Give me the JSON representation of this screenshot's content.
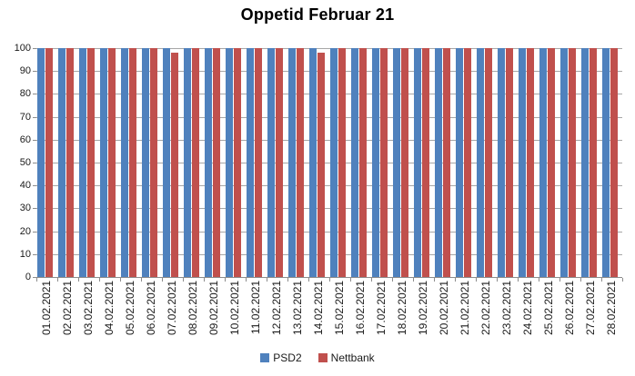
{
  "chart_data": {
    "type": "bar",
    "title": "Oppetid Februar 21",
    "categories": [
      "01.02.2021",
      "02.02.2021",
      "03.02.2021",
      "04.02.2021",
      "05.02.2021",
      "06.02.2021",
      "07.02.2021",
      "08.02.2021",
      "09.02.2021",
      "10.02.2021",
      "11.02.2021",
      "12.02.2021",
      "13.02.2021",
      "14.02.2021",
      "15.02.2021",
      "16.02.2021",
      "17.02.2021",
      "18.02.2021",
      "19.02.2021",
      "20.02.2021",
      "21.02.2021",
      "22.02.2021",
      "23.02.2021",
      "24.02.2021",
      "25.02.2021",
      "26.02.2021",
      "27.02.2021",
      "28.02.2021"
    ],
    "series": [
      {
        "name": "PSD2",
        "color": "#4F81BD",
        "values": [
          100,
          100,
          100,
          100,
          100,
          100,
          100,
          100,
          100,
          100,
          100,
          100,
          100,
          100,
          100,
          100,
          100,
          100,
          100,
          100,
          100,
          100,
          100,
          100,
          100,
          100,
          100,
          100
        ]
      },
      {
        "name": "Nettbank",
        "color": "#C0504D",
        "values": [
          100,
          100,
          100,
          100,
          100,
          100,
          98,
          100,
          100,
          100,
          100,
          100,
          100,
          98,
          100,
          100,
          100,
          100,
          100,
          100,
          100,
          100,
          100,
          100,
          100,
          100,
          100,
          100
        ]
      }
    ],
    "xlabel": "",
    "ylabel": "",
    "ylim": [
      0,
      100
    ],
    "ytick_step": 10,
    "grid": true,
    "legend_position": "bottom"
  },
  "colors": {
    "gridline": "#A6A6A6",
    "axis": "#8C8C8C",
    "text": "#1A1A1A",
    "background": "#FFFFFF"
  }
}
